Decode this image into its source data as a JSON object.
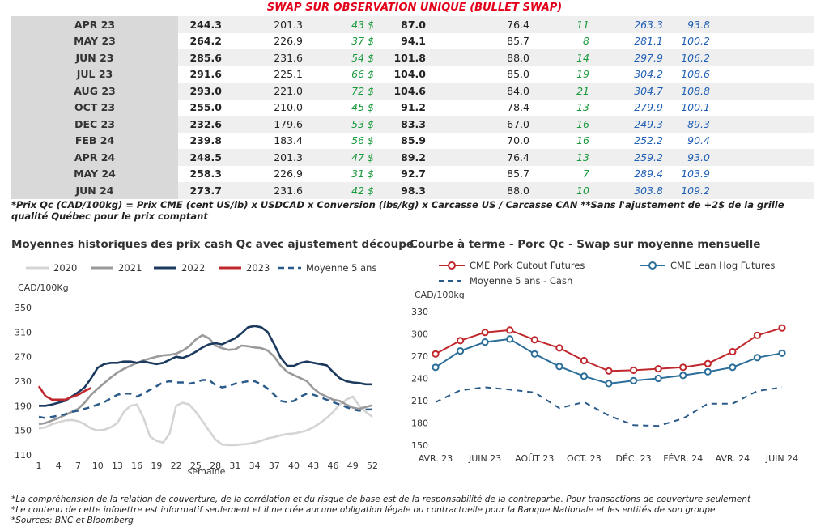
{
  "title": "SWAP SUR OBSERVATION UNIQUE (BULLET SWAP)",
  "table": {
    "rows": [
      {
        "month": "APR 23",
        "v1": "244.3",
        "v2": "201.3",
        "v3": "43 $",
        "v4": "87.0",
        "v5": "76.4",
        "v6": "11",
        "v7": "263.3",
        "v8": "93.8"
      },
      {
        "month": "MAY 23",
        "v1": "264.2",
        "v2": "226.9",
        "v3": "37 $",
        "v4": "94.1",
        "v5": "85.7",
        "v6": "8",
        "v7": "281.1",
        "v8": "100.2"
      },
      {
        "month": "JUN 23",
        "v1": "285.6",
        "v2": "231.6",
        "v3": "54 $",
        "v4": "101.8",
        "v5": "88.0",
        "v6": "14",
        "v7": "297.9",
        "v8": "106.2"
      },
      {
        "month": "JUL 23",
        "v1": "291.6",
        "v2": "225.1",
        "v3": "66 $",
        "v4": "104.0",
        "v5": "85.0",
        "v6": "19",
        "v7": "304.2",
        "v8": "108.6"
      },
      {
        "month": "AUG 23",
        "v1": "293.0",
        "v2": "221.0",
        "v3": "72 $",
        "v4": "104.6",
        "v5": "84.0",
        "v6": "21",
        "v7": "304.7",
        "v8": "108.8"
      },
      {
        "month": "OCT 23",
        "v1": "255.0",
        "v2": "210.0",
        "v3": "45 $",
        "v4": "91.2",
        "v5": "78.4",
        "v6": "13",
        "v7": "279.9",
        "v8": "100.1"
      },
      {
        "month": "DEC 23",
        "v1": "232.6",
        "v2": "179.6",
        "v3": "53 $",
        "v4": "83.3",
        "v5": "67.0",
        "v6": "16",
        "v7": "249.3",
        "v8": "89.3"
      },
      {
        "month": "FEB 24",
        "v1": "239.8",
        "v2": "183.4",
        "v3": "56 $",
        "v4": "85.9",
        "v5": "70.0",
        "v6": "16",
        "v7": "252.2",
        "v8": "90.4"
      },
      {
        "month": "APR 24",
        "v1": "248.5",
        "v2": "201.3",
        "v3": "47 $",
        "v4": "89.2",
        "v5": "76.4",
        "v6": "13",
        "v7": "259.2",
        "v8": "93.0"
      },
      {
        "month": "MAY 24",
        "v1": "258.3",
        "v2": "226.9",
        "v3": "31 $",
        "v4": "92.7",
        "v5": "85.7",
        "v6": "7",
        "v7": "289.4",
        "v8": "103.9"
      },
      {
        "month": "JUN 24",
        "v1": "273.7",
        "v2": "231.6",
        "v3": "42 $",
        "v4": "98.3",
        "v5": "88.0",
        "v6": "10",
        "v7": "303.8",
        "v8": "109.2"
      }
    ]
  },
  "note": "*Prix Qc (CAD/100kg) = Prix CME (cent US/lb) x USDCAD x Conversion (lbs/kg) x Carcasse US / Carcasse CAN **Sans l'ajustement de +2$ de la grille qualité Québec pour le prix comptant",
  "colors": {
    "red": "#e2001a",
    "green": "#1a9a3c",
    "blue": "#1f5fb4",
    "c2020": "#d4d4d4",
    "c2021": "#9a9a9a",
    "c2022": "#1c3a5e",
    "c2023": "#c0282d",
    "avg": "#2a5a8a"
  },
  "chart_data": [
    {
      "type": "line",
      "title": "Moyennes historiques des prix cash Qc avec ajustement découpe",
      "ylabel": "CAD/100Kg",
      "xlabel": "semaine",
      "ylim": [
        110,
        350
      ],
      "yticks": [
        110,
        150,
        190,
        230,
        270,
        310,
        350
      ],
      "xlim": [
        1,
        52
      ],
      "xticks": [
        1,
        4,
        7,
        10,
        13,
        16,
        19,
        22,
        25,
        28,
        31,
        34,
        37,
        40,
        43,
        46,
        49,
        52
      ],
      "legend": "top",
      "grid": false,
      "series": [
        {
          "name": "2020",
          "color": "#d4d4d4",
          "dash": false,
          "x": [
            1,
            2,
            3,
            4,
            5,
            6,
            7,
            8,
            9,
            10,
            11,
            12,
            13,
            14,
            15,
            16,
            17,
            18,
            19,
            20,
            21,
            22,
            23,
            24,
            25,
            26,
            27,
            28,
            29,
            30,
            31,
            32,
            33,
            34,
            35,
            36,
            37,
            38,
            39,
            40,
            41,
            42,
            43,
            44,
            45,
            46,
            47,
            48,
            49,
            50,
            51,
            52
          ],
          "y": [
            153,
            155,
            160,
            163,
            166,
            167,
            165,
            160,
            153,
            150,
            151,
            155,
            162,
            180,
            190,
            192,
            170,
            140,
            133,
            130,
            145,
            190,
            195,
            192,
            180,
            165,
            150,
            135,
            127,
            126,
            126,
            127,
            128,
            130,
            133,
            137,
            139,
            142,
            144,
            145,
            147,
            150,
            155,
            162,
            170,
            180,
            192,
            200,
            205,
            190,
            180,
            172
          ]
        },
        {
          "name": "2021",
          "color": "#9a9a9a",
          "dash": false,
          "x": [
            1,
            2,
            3,
            4,
            5,
            6,
            7,
            8,
            9,
            10,
            11,
            12,
            13,
            14,
            15,
            16,
            17,
            18,
            19,
            20,
            21,
            22,
            23,
            24,
            25,
            26,
            27,
            28,
            29,
            30,
            31,
            32,
            33,
            34,
            35,
            36,
            37,
            38,
            39,
            40,
            41,
            42,
            43,
            44,
            45,
            46,
            47,
            48,
            49,
            50,
            51,
            52
          ],
          "y": [
            160,
            162,
            166,
            170,
            175,
            180,
            185,
            195,
            208,
            218,
            227,
            236,
            244,
            250,
            255,
            260,
            264,
            267,
            270,
            272,
            273,
            275,
            280,
            287,
            298,
            305,
            300,
            288,
            284,
            281,
            282,
            288,
            287,
            285,
            284,
            280,
            270,
            255,
            245,
            240,
            235,
            230,
            218,
            210,
            205,
            200,
            198,
            192,
            187,
            185,
            188,
            191
          ]
        },
        {
          "name": "2022",
          "color": "#1c3a5e",
          "dash": false,
          "x": [
            1,
            2,
            3,
            4,
            5,
            6,
            7,
            8,
            9,
            10,
            11,
            12,
            13,
            14,
            15,
            16,
            17,
            18,
            19,
            20,
            21,
            22,
            23,
            24,
            25,
            26,
            27,
            28,
            29,
            30,
            31,
            32,
            33,
            34,
            35,
            36,
            37,
            38,
            39,
            40,
            41,
            42,
            43,
            44,
            45,
            46,
            47,
            48,
            49,
            50,
            51,
            52
          ],
          "y": [
            190,
            190,
            192,
            195,
            198,
            205,
            212,
            220,
            235,
            252,
            258,
            260,
            260,
            262,
            262,
            260,
            262,
            260,
            258,
            260,
            265,
            270,
            268,
            272,
            278,
            285,
            290,
            292,
            290,
            295,
            300,
            308,
            318,
            320,
            318,
            310,
            290,
            268,
            255,
            255,
            260,
            262,
            260,
            258,
            256,
            245,
            235,
            230,
            228,
            227,
            225,
            225
          ]
        },
        {
          "name": "2023",
          "color": "#c0282d",
          "dash": false,
          "x": [
            1,
            2,
            3,
            4,
            5,
            6,
            7,
            8,
            9
          ],
          "y": [
            222,
            206,
            200,
            200,
            200,
            204,
            208,
            214,
            219
          ]
        },
        {
          "name": "Moyenne 5 ans",
          "color": "#2a5a8a",
          "dash": true,
          "x": [
            1,
            2,
            3,
            4,
            5,
            6,
            7,
            8,
            9,
            10,
            11,
            12,
            13,
            14,
            15,
            16,
            17,
            18,
            19,
            20,
            21,
            22,
            23,
            24,
            25,
            26,
            27,
            28,
            29,
            30,
            31,
            32,
            33,
            34,
            35,
            36,
            37,
            38,
            39,
            40,
            41,
            42,
            43,
            44,
            45,
            46,
            47,
            48,
            49,
            50,
            51,
            52
          ],
          "y": [
            172,
            170,
            172,
            174,
            176,
            180,
            182,
            185,
            188,
            192,
            196,
            202,
            208,
            210,
            210,
            205,
            210,
            216,
            222,
            228,
            230,
            228,
            228,
            226,
            228,
            232,
            232,
            224,
            220,
            222,
            226,
            228,
            230,
            230,
            225,
            218,
            208,
            198,
            196,
            198,
            205,
            210,
            208,
            204,
            200,
            196,
            192,
            188,
            184,
            182,
            184,
            184
          ]
        }
      ]
    },
    {
      "type": "line",
      "title": "Courbe à terme - Porc Qc - Swap sur moyenne mensuelle",
      "ylabel": "CAD/100kg",
      "ylim": [
        150,
        330
      ],
      "yticks": [
        150,
        180,
        210,
        240,
        270,
        300,
        330
      ],
      "categories": [
        "AVR. 23",
        "MAI 23",
        "JUIN 23",
        "JUIL. 23",
        "AOÛT 23",
        "SEPT. 23",
        "OCT. 23",
        "NOV. 23",
        "DÉC. 23",
        "JANV. 24",
        "FÉVR. 24",
        "MARS 24",
        "AVR. 24",
        "MAI 24",
        "JUIN 24"
      ],
      "xtick_labels": [
        "AVR. 23",
        "JUIN 23",
        "AOÛT 23",
        "OCT. 23",
        "DÉC. 23",
        "FÉVR. 24",
        "AVR. 24",
        "JUIN 24"
      ],
      "legend": "top",
      "grid": false,
      "series": [
        {
          "name": "CME Pork Cutout Futures",
          "color": "#c0282d",
          "marker": "circle",
          "dash": false,
          "values": [
            273,
            291,
            302,
            305,
            292,
            281,
            264,
            250,
            251,
            253,
            255,
            260,
            276,
            298,
            308
          ]
        },
        {
          "name": "CME Lean Hog Futures",
          "color": "#2a6e99",
          "marker": "circle",
          "dash": false,
          "values": [
            255,
            277,
            289,
            293,
            273,
            256,
            243,
            233,
            237,
            240,
            244,
            249,
            255,
            268,
            274
          ]
        },
        {
          "name": "Moyenne 5 ans - Cash",
          "color": "#2a5a8a",
          "marker": "none",
          "dash": true,
          "values": [
            208,
            224,
            228,
            225,
            221,
            200,
            208,
            190,
            177,
            176,
            186,
            206,
            206,
            223,
            228
          ]
        }
      ]
    }
  ],
  "footer": {
    "line1": "*La compréhension de la relation de couverture, de la corrélation et du risque de base est de la responsabilité de la contrepartie. Pour transactions de couverture seulement",
    "line2": "*Le contenu de cette infolettre est informatif seulement et il ne crée aucune obligation légale ou contractuelle pour la Banque Nationale et les entités de son groupe",
    "line3": "*Sources: BNC et Bloomberg"
  }
}
